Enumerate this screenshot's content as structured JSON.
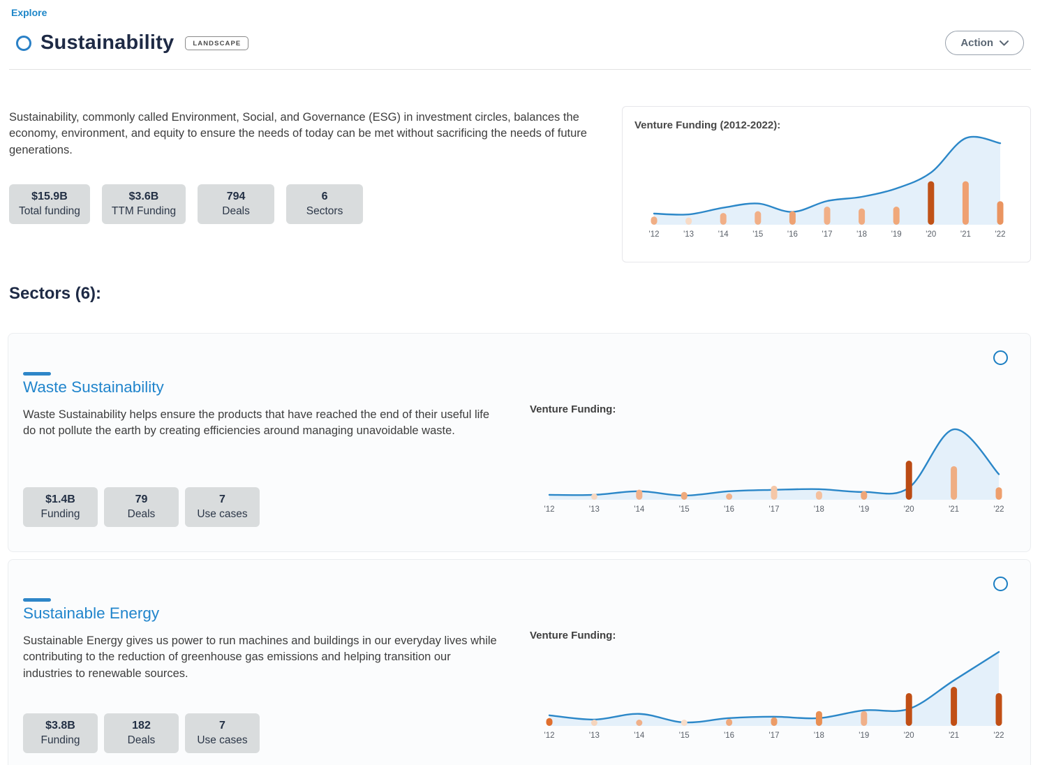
{
  "header": {
    "breadcrumb": "Explore",
    "title": "Sustainability",
    "badge": "LANDSCAPE",
    "action": "Action"
  },
  "overview": {
    "description": "Sustainability, commonly called Environment, Social, and Governance (ESG) in investment circles, balances the economy, environment, and equity to ensure the needs of today can be met without sacrificing the needs of future generations.",
    "stats": [
      {
        "value": "$15.9B",
        "label": "Total funding"
      },
      {
        "value": "$3.6B",
        "label": "TTM Funding"
      },
      {
        "value": "794",
        "label": "Deals"
      },
      {
        "value": "6",
        "label": "Sectors"
      }
    ]
  },
  "sectors_heading": "Sectors (6):",
  "sectors": [
    {
      "title": "Waste Sustainability",
      "description": "Waste Sustainability helps ensure the products that have reached the end of their useful life do not pollute the earth by creating efficiencies around managing unavoidable waste.",
      "stats": [
        {
          "value": "$1.4B",
          "label": "Funding"
        },
        {
          "value": "79",
          "label": "Deals"
        },
        {
          "value": "7",
          "label": "Use cases"
        }
      ],
      "chart_label": "Venture Funding:"
    },
    {
      "title": "Sustainable Energy",
      "description": "Sustainable Energy gives us power to run machines and buildings in our everyday lives while contributing to the reduction of greenhouse gas emissions and helping transition our industries to renewable sources.",
      "stats": [
        {
          "value": "$3.8B",
          "label": "Funding"
        },
        {
          "value": "182",
          "label": "Deals"
        },
        {
          "value": "7",
          "label": "Use cases"
        }
      ],
      "chart_label": "Venture Funding:"
    }
  ],
  "chart_data": [
    {
      "type": "area-line+bar",
      "title": "Venture Funding (2012-2022):",
      "categories": [
        "'12",
        "'13",
        "'14",
        "'15",
        "'16",
        "'17",
        "'18",
        "'19",
        "'20",
        "'21",
        "'22"
      ],
      "series": [
        {
          "name": "funding-trend-line",
          "values": [
            10,
            9,
            17,
            22,
            12,
            25,
            30,
            40,
            59,
            100,
            94
          ]
        },
        {
          "name": "deal-bars",
          "values": [
            9,
            8,
            13,
            15,
            15,
            20,
            18,
            20,
            48,
            48,
            26
          ]
        }
      ],
      "bar_colors": [
        "#f0ae85",
        "#f8dbc6",
        "#f1af87",
        "#f1af87",
        "#eea273",
        "#f1af87",
        "#f0ab80",
        "#f0a87a",
        "#c05217",
        "#efa071",
        "#ea9460"
      ],
      "line_color": "#2b87c8",
      "area_color": "#e4f0fa",
      "label_color": "#5a6069",
      "ylim": [
        0,
        100
      ],
      "grid": "off",
      "legend": "none"
    },
    {
      "type": "area-line+bar",
      "title": "Venture Funding:",
      "categories": [
        "'12",
        "'13",
        "'14",
        "'15",
        "'16",
        "'17",
        "'18",
        "'19",
        "'20",
        "'21",
        "'22"
      ],
      "series": [
        {
          "name": "funding-trend-line",
          "values": [
            3,
            3,
            8,
            2,
            8,
            10,
            11,
            7,
            13,
            95,
            32
          ]
        },
        {
          "name": "deal-bars",
          "values": [
            0,
            4,
            13,
            10,
            7,
            18,
            11,
            11,
            50,
            43,
            16
          ]
        }
      ],
      "bar_colors": [
        "#f1b28b",
        "#f6d8c2",
        "#f1b28b",
        "#efaa7d",
        "#f1b28b",
        "#f5c7a7",
        "#f4c09e",
        "#efa678",
        "#bb4b14",
        "#efae83",
        "#ee9f6d"
      ],
      "line_color": "#2b87c8",
      "area_color": "#e4f0fa",
      "label_color": "#5a6069",
      "ylim": [
        0,
        100
      ],
      "grid": "off",
      "legend": "none"
    },
    {
      "type": "area-line+bar",
      "title": "Venture Funding:",
      "categories": [
        "'12",
        "'13",
        "'14",
        "'15",
        "'16",
        "'17",
        "'18",
        "'19",
        "'20",
        "'21",
        "'22"
      ],
      "series": [
        {
          "name": "funding-trend-line",
          "values": [
            11,
            5,
            13,
            1,
            7,
            9,
            7,
            18,
            20,
            60,
            100
          ]
        },
        {
          "name": "deal-bars",
          "values": [
            10,
            4,
            6,
            4,
            9,
            11,
            19,
            19,
            42,
            50,
            42
          ]
        }
      ],
      "bar_colors": [
        "#e06f2e",
        "#f6d5bd",
        "#f0b089",
        "#f8ddc9",
        "#efa97c",
        "#ec9c67",
        "#e98f53",
        "#f0b089",
        "#c14f15",
        "#c14f15",
        "#c14f15"
      ],
      "line_color": "#2b87c8",
      "area_color": "#e4f0fa",
      "label_color": "#5a6069",
      "ylim": [
        0,
        100
      ],
      "grid": "off",
      "legend": "none"
    }
  ]
}
